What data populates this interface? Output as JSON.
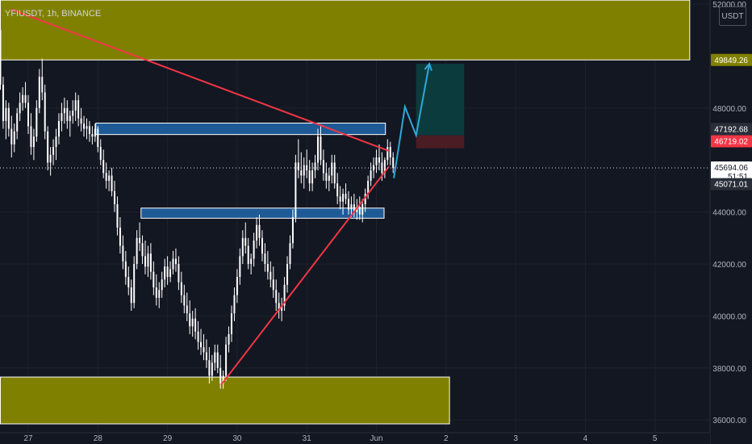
{
  "symbol_label": "YFIUSDT, 1h, BINANCE",
  "currency": "USDT",
  "colors": {
    "background": "#131722",
    "grid": "#1e222d",
    "candle": "#ffffff",
    "zone_fill": "#808000",
    "zone_box": "#1e5a96",
    "trend": "#f23645",
    "projection": "#2fa8d8",
    "target_fill": "#0c3b3d",
    "stop_fill": "#4a1c24"
  },
  "chart_data": {
    "type": "candlestick",
    "symbol": "YFIUSDT",
    "interval": "1h",
    "exchange": "BINANCE",
    "x_labels": [
      "27",
      "28",
      "29",
      "30",
      "31",
      "Jun",
      "2",
      "3",
      "4",
      "5"
    ],
    "y_ticks": [
      36000,
      38000,
      40000,
      42000,
      44000,
      48000,
      52000
    ],
    "y_tick_labels": [
      "36000.00",
      "38000.00",
      "40000.00",
      "42000.00",
      "44000.00",
      "48000.00",
      "52000.00"
    ],
    "ylim": [
      35850,
      52150
    ],
    "price_badges": [
      {
        "value": 49849.26,
        "label": "49849.26",
        "bg": "#808000",
        "fg": "#ffffff"
      },
      {
        "value": 47192.68,
        "label": "47192.68",
        "bg": "#2a2e39",
        "fg": "#ffffff"
      },
      {
        "value": 46719.02,
        "label": "46719.02",
        "bg": "#f23645",
        "fg": "#ffffff"
      },
      {
        "value": 45694.06,
        "label": "45694.06",
        "sub": "51:51",
        "bg": "#ffffff",
        "fg": "#131722"
      },
      {
        "value": 45071.01,
        "label": "45071.01",
        "bg": "#2a2e39",
        "fg": "#ffffff"
      }
    ],
    "last_price": 45694.06,
    "candles": [
      [
        26.6,
        51000,
        51400,
        48700,
        48900
      ],
      [
        26.64,
        48900,
        49200,
        47200,
        47500
      ],
      [
        26.68,
        47500,
        48300,
        46800,
        48000
      ],
      [
        26.72,
        48000,
        48200,
        46900,
        47200
      ],
      [
        26.76,
        47200,
        47700,
        46100,
        46600
      ],
      [
        26.8,
        46600,
        47400,
        46300,
        47100
      ],
      [
        26.84,
        47100,
        48000,
        46800,
        47800
      ],
      [
        26.88,
        47800,
        48600,
        47500,
        48200
      ],
      [
        26.92,
        48200,
        48800,
        47900,
        48500
      ],
      [
        26.96,
        48500,
        49000,
        48000,
        48200
      ],
      [
        27.0,
        48200,
        48500,
        47000,
        47300
      ],
      [
        27.04,
        47300,
        47800,
        46200,
        46500
      ],
      [
        27.08,
        46500,
        47200,
        46000,
        46900
      ],
      [
        27.12,
        46900,
        48300,
        46700,
        48000
      ],
      [
        27.16,
        48000,
        49500,
        47800,
        49200
      ],
      [
        27.2,
        49200,
        49900,
        48300,
        48600
      ],
      [
        27.24,
        48600,
        48900,
        46800,
        47100
      ],
      [
        27.28,
        47100,
        47300,
        45600,
        45900
      ],
      [
        27.32,
        45900,
        46500,
        45400,
        46200
      ],
      [
        27.36,
        46200,
        46800,
        45800,
        46500
      ],
      [
        27.4,
        46500,
        47200,
        46000,
        46900
      ],
      [
        27.44,
        46900,
        47800,
        46600,
        47500
      ],
      [
        27.48,
        47500,
        48200,
        47100,
        47800
      ],
      [
        27.52,
        47800,
        48400,
        47400,
        48000
      ],
      [
        27.56,
        48000,
        48300,
        47200,
        47500
      ],
      [
        27.6,
        47500,
        47900,
        46900,
        47700
      ],
      [
        27.64,
        47700,
        48300,
        47400,
        47900
      ],
      [
        27.68,
        47900,
        48600,
        47500,
        48300
      ],
      [
        27.72,
        48300,
        48500,
        47300,
        47600
      ],
      [
        27.76,
        47600,
        48000,
        47100,
        47400
      ],
      [
        27.8,
        47400,
        47700,
        46900,
        47200
      ],
      [
        27.84,
        47200,
        47600,
        46800,
        47300
      ],
      [
        27.88,
        47300,
        47500,
        46700,
        47000
      ],
      [
        27.92,
        47000,
        47300,
        46600,
        46900
      ],
      [
        27.96,
        46900,
        47400,
        46700,
        47200
      ],
      [
        28.0,
        47200,
        47300,
        46300,
        46500
      ],
      [
        28.04,
        46500,
        46800,
        45800,
        46000
      ],
      [
        28.08,
        46000,
        46400,
        45300,
        45500
      ],
      [
        28.12,
        45500,
        45900,
        44900,
        45200
      ],
      [
        28.16,
        45200,
        45600,
        44800,
        45400
      ],
      [
        28.2,
        45400,
        45700,
        44600,
        44800
      ],
      [
        28.24,
        44800,
        45200,
        44000,
        44300
      ],
      [
        28.28,
        44300,
        44600,
        43100,
        43400
      ],
      [
        28.32,
        43400,
        43800,
        42400,
        42700
      ],
      [
        28.36,
        42700,
        43100,
        41800,
        42100
      ],
      [
        28.4,
        42100,
        42500,
        41200,
        41500
      ],
      [
        28.44,
        41500,
        41900,
        40800,
        41100
      ],
      [
        28.48,
        41100,
        41400,
        40200,
        40500
      ],
      [
        28.52,
        40500,
        42300,
        40300,
        42000
      ],
      [
        28.56,
        42000,
        43300,
        41800,
        43000
      ],
      [
        28.6,
        43000,
        43600,
        42500,
        42800
      ],
      [
        28.64,
        42800,
        43100,
        42000,
        42300
      ],
      [
        28.68,
        42300,
        42900,
        41600,
        41900
      ],
      [
        28.72,
        41900,
        42700,
        41500,
        42400
      ],
      [
        28.76,
        42400,
        42800,
        41400,
        41700
      ],
      [
        28.8,
        41700,
        42100,
        40800,
        41100
      ],
      [
        28.84,
        41100,
        41600,
        40400,
        40700
      ],
      [
        28.88,
        40700,
        41300,
        40300,
        41000
      ],
      [
        28.92,
        41000,
        41700,
        40700,
        41400
      ],
      [
        28.96,
        41400,
        42200,
        41100,
        41900
      ],
      [
        29.0,
        41900,
        42300,
        41200,
        41500
      ],
      [
        29.04,
        41500,
        42100,
        41300,
        41800
      ],
      [
        29.08,
        41800,
        42500,
        41600,
        42200
      ],
      [
        29.12,
        42200,
        42600,
        41700,
        42000
      ],
      [
        29.16,
        42000,
        42300,
        41000,
        41300
      ],
      [
        29.2,
        41300,
        41700,
        40500,
        40800
      ],
      [
        29.24,
        40800,
        41200,
        40100,
        40400
      ],
      [
        29.28,
        40400,
        40900,
        39800,
        40100
      ],
      [
        29.32,
        40100,
        40600,
        39300,
        39600
      ],
      [
        29.36,
        39600,
        40200,
        39200,
        39900
      ],
      [
        29.4,
        39900,
        40300,
        39100,
        39400
      ],
      [
        29.44,
        39400,
        39800,
        38700,
        39000
      ],
      [
        29.48,
        39000,
        39500,
        38500,
        38800
      ],
      [
        29.52,
        38800,
        39300,
        38300,
        38600
      ],
      [
        29.56,
        38600,
        39100,
        38000,
        38300
      ],
      [
        29.6,
        38300,
        38800,
        37400,
        37700
      ],
      [
        29.64,
        37700,
        38500,
        37500,
        38200
      ],
      [
        29.68,
        38200,
        38900,
        37900,
        38600
      ],
      [
        29.72,
        38600,
        38900,
        37800,
        38000
      ],
      [
        29.76,
        38000,
        38500,
        37200,
        37400
      ],
      [
        29.8,
        37400,
        37900,
        37200,
        37700
      ],
      [
        29.84,
        37700,
        39200,
        37500,
        38900
      ],
      [
        29.88,
        38900,
        39600,
        38600,
        39300
      ],
      [
        29.92,
        39300,
        40400,
        39000,
        40100
      ],
      [
        29.96,
        40100,
        41100,
        39800,
        40800
      ],
      [
        30.0,
        40800,
        41800,
        40500,
        41500
      ],
      [
        30.04,
        41500,
        42600,
        41200,
        42300
      ],
      [
        30.08,
        42300,
        43300,
        42000,
        43000
      ],
      [
        30.12,
        43000,
        43600,
        42400,
        42700
      ],
      [
        30.16,
        42700,
        43000,
        41800,
        42000
      ],
      [
        30.2,
        42000,
        42400,
        41600,
        42200
      ],
      [
        30.24,
        42200,
        43200,
        41900,
        42900
      ],
      [
        30.28,
        42900,
        43800,
        42600,
        43500
      ],
      [
        30.32,
        43500,
        43900,
        42700,
        43000
      ],
      [
        30.36,
        43000,
        43300,
        42100,
        42400
      ],
      [
        30.4,
        42400,
        42800,
        41700,
        42000
      ],
      [
        30.44,
        42000,
        42500,
        41400,
        41700
      ],
      [
        30.48,
        41700,
        42100,
        41100,
        41400
      ],
      [
        30.52,
        41400,
        41900,
        40700,
        41000
      ],
      [
        30.56,
        41000,
        41400,
        40200,
        40500
      ],
      [
        30.6,
        40500,
        40900,
        39900,
        40200
      ],
      [
        30.64,
        40200,
        40700,
        39800,
        40400
      ],
      [
        30.68,
        40400,
        41500,
        40200,
        41200
      ],
      [
        30.72,
        41200,
        42300,
        40900,
        42000
      ],
      [
        30.76,
        42000,
        43100,
        41800,
        42800
      ],
      [
        30.8,
        42800,
        44100,
        42600,
        43800
      ],
      [
        30.84,
        43800,
        46200,
        43600,
        45900
      ],
      [
        30.88,
        45900,
        46800,
        45300,
        45600
      ],
      [
        30.92,
        45600,
        46300,
        45100,
        45400
      ],
      [
        30.96,
        45400,
        46100,
        44900,
        45800
      ],
      [
        31.0,
        45800,
        46400,
        45300,
        45600
      ],
      [
        31.04,
        45600,
        46000,
        44800,
        45100
      ],
      [
        31.08,
        45100,
        45900,
        44800,
        45600
      ],
      [
        31.12,
        45600,
        46200,
        45300,
        45900
      ],
      [
        31.16,
        45900,
        47200,
        45600,
        46900
      ],
      [
        31.2,
        46900,
        47300,
        45800,
        46000
      ],
      [
        31.24,
        46000,
        46400,
        45200,
        45500
      ],
      [
        31.28,
        45500,
        45900,
        44900,
        45200
      ],
      [
        31.32,
        45200,
        45700,
        44800,
        45400
      ],
      [
        31.36,
        45400,
        46200,
        45100,
        45900
      ],
      [
        31.4,
        45900,
        46200,
        44900,
        45100
      ],
      [
        31.44,
        45100,
        45500,
        44300,
        44600
      ],
      [
        31.48,
        44600,
        45000,
        44100,
        44400
      ],
      [
        31.52,
        44400,
        44900,
        43900,
        44700
      ],
      [
        31.56,
        44700,
        45100,
        44300,
        44500
      ],
      [
        31.6,
        44500,
        44800,
        43900,
        44100
      ],
      [
        31.64,
        44100,
        44600,
        43800,
        44300
      ],
      [
        31.68,
        44300,
        44700,
        43800,
        44000
      ],
      [
        31.72,
        44000,
        44500,
        43700,
        44200
      ],
      [
        31.76,
        44200,
        44600,
        43700,
        43900
      ],
      [
        31.8,
        43900,
        44500,
        43600,
        44300
      ],
      [
        31.84,
        44300,
        44900,
        44000,
        44700
      ],
      [
        31.88,
        44700,
        45400,
        44500,
        45200
      ],
      [
        31.92,
        45200,
        45900,
        45000,
        45600
      ],
      [
        31.96,
        45600,
        46100,
        45300,
        45800
      ],
      [
        32.0,
        45800,
        46400,
        45500,
        46100
      ],
      [
        32.04,
        46100,
        46600,
        45600,
        45900
      ],
      [
        32.08,
        45900,
        46300,
        45200,
        45500
      ],
      [
        32.12,
        45500,
        46100,
        45300,
        46000
      ],
      [
        32.16,
        46000,
        46800,
        45800,
        46500
      ],
      [
        32.2,
        46500,
        46700,
        45800,
        46100
      ],
      [
        32.24,
        46100,
        46300,
        45500,
        45694
      ]
    ],
    "levels": [
      {
        "kind": "zone",
        "from": 49849.26,
        "to": 52150,
        "t1": 26.6,
        "t2": 36.5
      },
      {
        "kind": "zone",
        "from": 35850,
        "to": 37650,
        "t1": 26.6,
        "t2": 33.05
      },
      {
        "kind": "box",
        "from": 46980,
        "to": 47420,
        "t1": 27.97,
        "t2": 32.13
      },
      {
        "kind": "box",
        "from": 43760,
        "to": 44150,
        "t1": 28.62,
        "t2": 32.11
      }
    ],
    "lines": [
      {
        "kind": "trend",
        "points": [
          [
            26.75,
            51800
          ],
          [
            32.18,
            46350
          ]
        ]
      },
      {
        "kind": "trend",
        "points": [
          [
            29.77,
            37350
          ],
          [
            32.18,
            45750
          ]
        ]
      },
      {
        "kind": "projection",
        "points": [
          [
            32.25,
            45300
          ],
          [
            32.41,
            48050
          ],
          [
            32.57,
            46950
          ],
          [
            32.76,
            49700
          ]
        ]
      }
    ],
    "position": {
      "t1": 32.57,
      "t2": 33.26,
      "entry": 46950,
      "target": 49700,
      "stop": 46450
    }
  }
}
